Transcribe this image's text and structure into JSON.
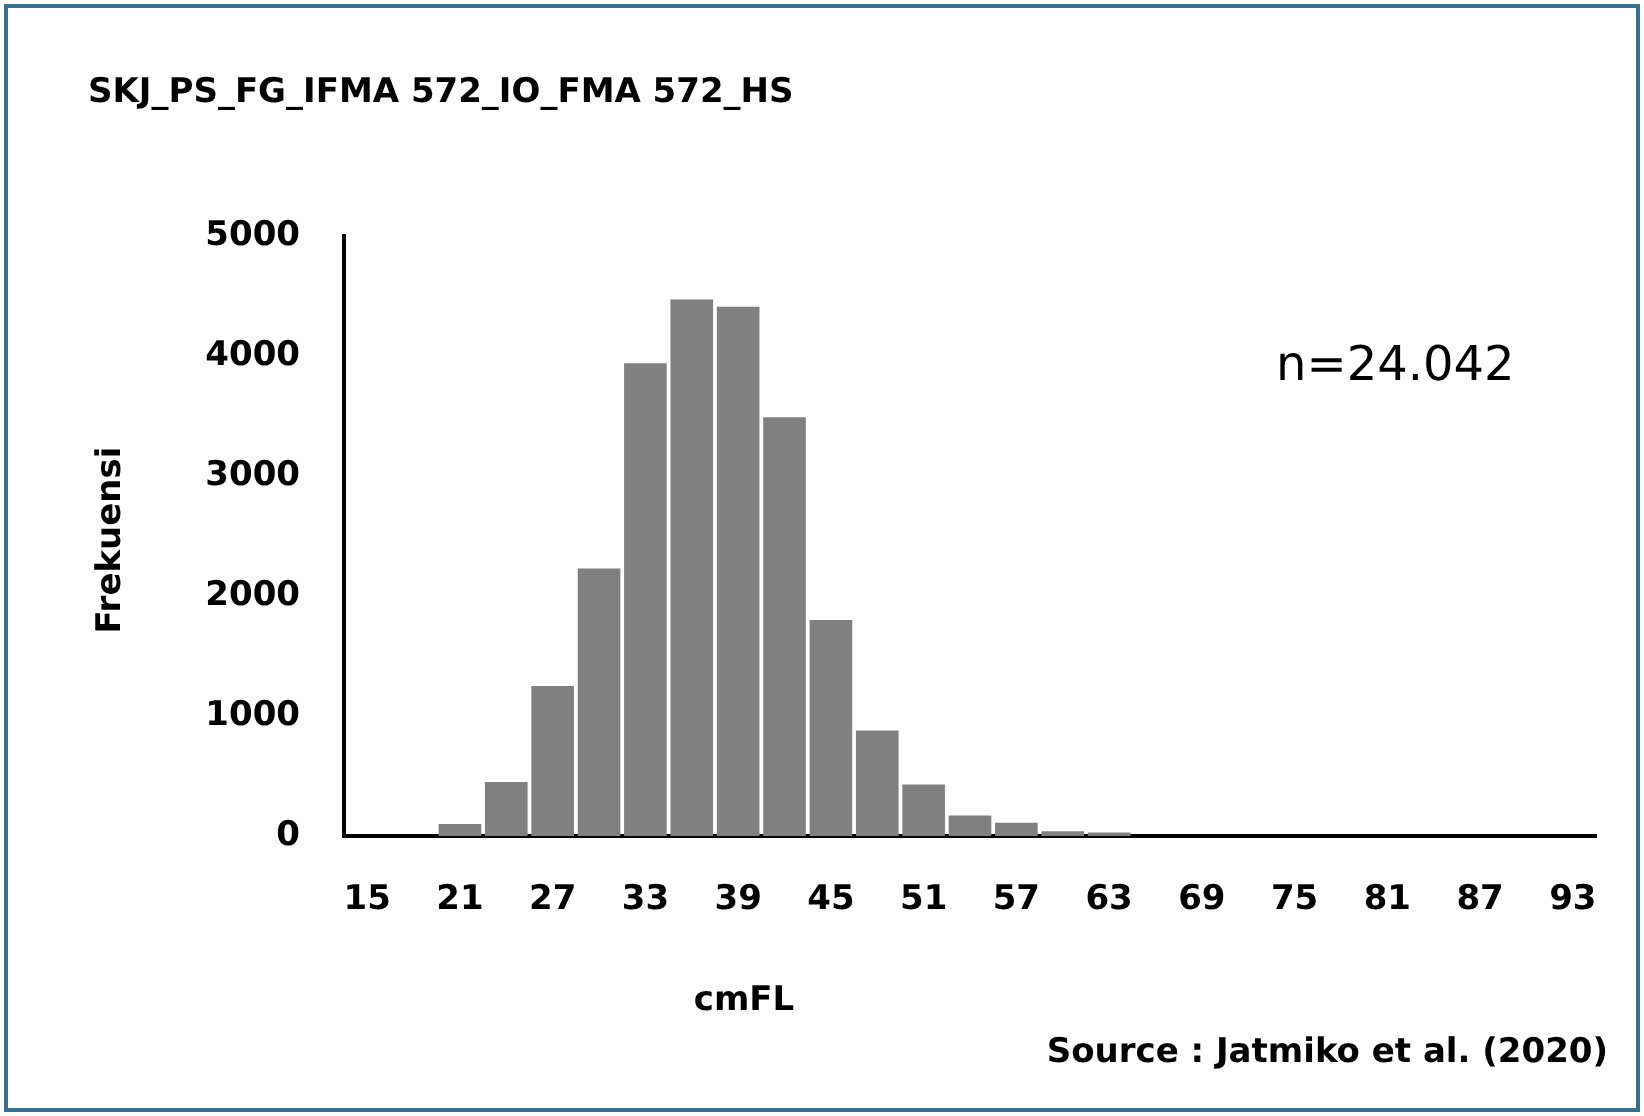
{
  "chart_data": {
    "type": "bar",
    "title": "SKJ_PS_FG_IFMA 572_IO_FMA 572_HS",
    "xlabel": "cmFL",
    "ylabel": "Frekuensi",
    "categories": [
      "15",
      null,
      "21",
      null,
      "27",
      null,
      "33",
      null,
      "39",
      null,
      "45",
      null,
      "51",
      null,
      "57",
      null,
      "63",
      null,
      "69",
      null,
      "75",
      null,
      "81",
      null,
      "87",
      null,
      "93"
    ],
    "values": [
      0,
      0,
      100,
      450,
      1250,
      2230,
      3940,
      4470,
      4410,
      3490,
      1800,
      880,
      430,
      170,
      110,
      40,
      30,
      0,
      0,
      0,
      0,
      0,
      0,
      0,
      0,
      0,
      0
    ],
    "color": "#808080",
    "ylim": [
      0,
      5000
    ],
    "yticks": [
      0,
      1000,
      2000,
      3000,
      4000,
      5000
    ],
    "annotations": [
      "n=24.042",
      "Source : Jatmiko et al. (2020)"
    ]
  }
}
